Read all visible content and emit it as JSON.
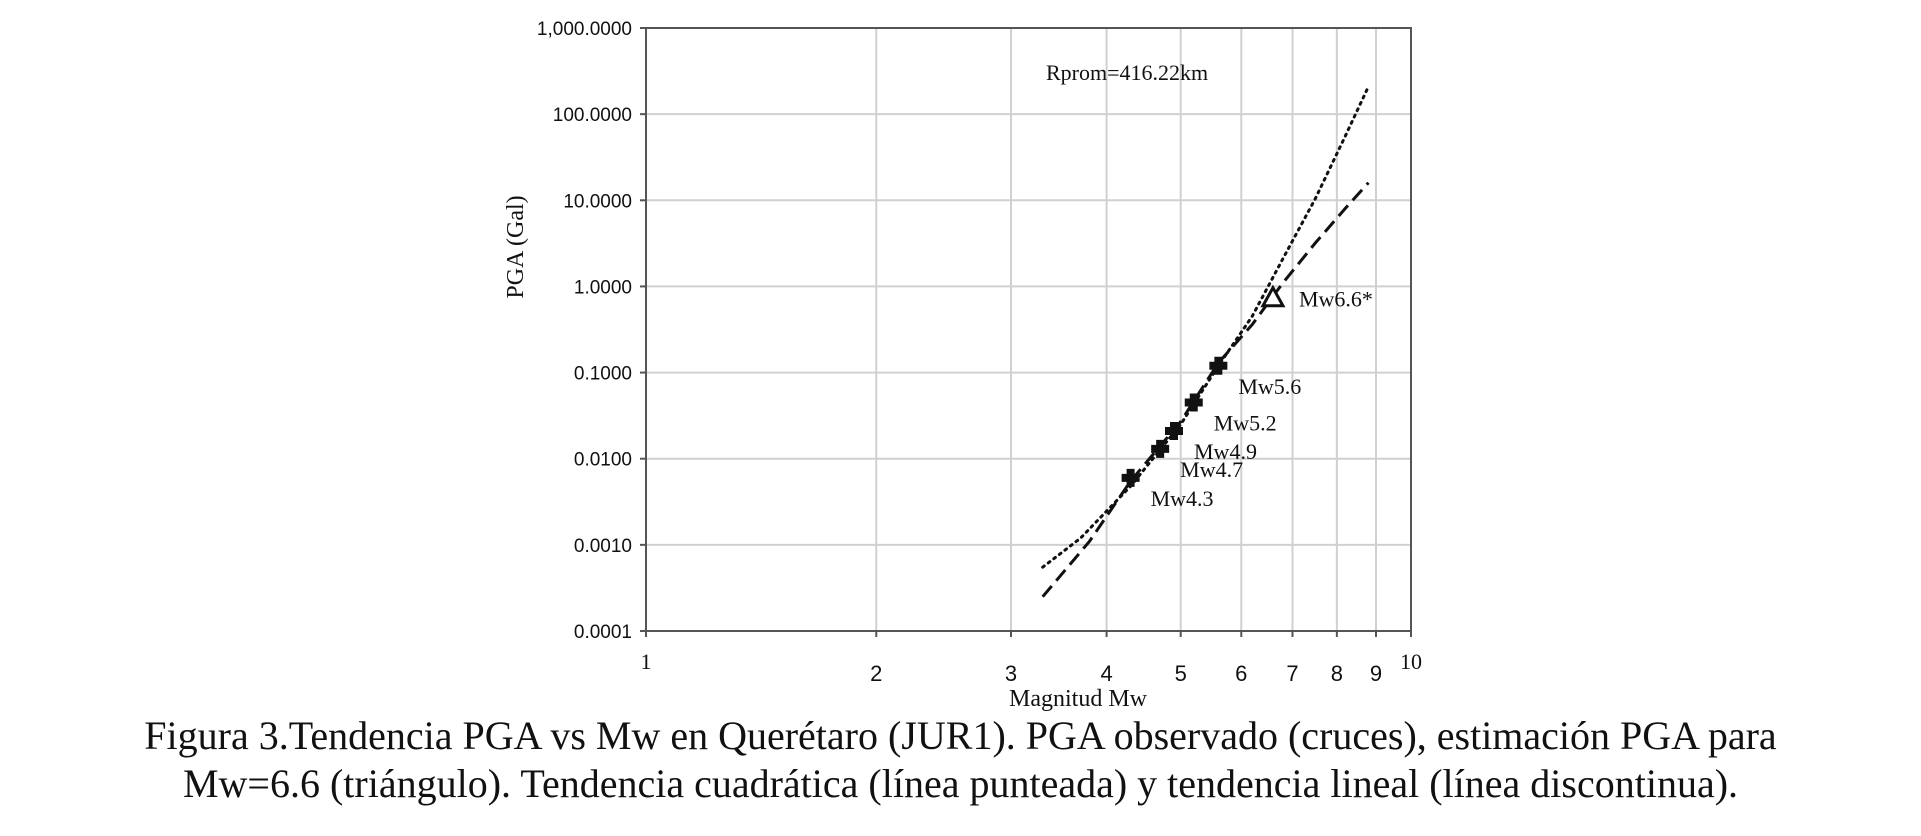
{
  "chart_data": {
    "type": "scatter",
    "xlabel": "Magnitud Mw",
    "ylabel": "PGA  (Gal)",
    "x_scale": "log",
    "y_scale": "log",
    "xlim": [
      1,
      10
    ],
    "ylim": [
      0.0001,
      1000
    ],
    "grid": true,
    "x_ticks": [
      {
        "value": 1,
        "label": "1"
      },
      {
        "value": 2,
        "label": "2"
      },
      {
        "value": 3,
        "label": "3"
      },
      {
        "value": 4,
        "label": "4"
      },
      {
        "value": 5,
        "label": "5"
      },
      {
        "value": 6,
        "label": "6"
      },
      {
        "value": 7,
        "label": "7"
      },
      {
        "value": 8,
        "label": "8"
      },
      {
        "value": 9,
        "label": "9"
      },
      {
        "value": 10,
        "label": "10"
      }
    ],
    "y_ticks": [
      {
        "value": 1000,
        "label": "1,000.0000"
      },
      {
        "value": 100,
        "label": "100.0000"
      },
      {
        "value": 10,
        "label": "10.0000"
      },
      {
        "value": 1,
        "label": "1.0000"
      },
      {
        "value": 0.1,
        "label": "0.1000"
      },
      {
        "value": 0.01,
        "label": "0.0100"
      },
      {
        "value": 0.001,
        "label": "0.0010"
      },
      {
        "value": 0.0001,
        "label": "0.0001"
      }
    ],
    "annotation": "Rprom=416.22km",
    "observed": [
      {
        "x": 4.3,
        "y": 0.006,
        "label": "Mw4.3"
      },
      {
        "x": 4.7,
        "y": 0.013,
        "label": "Mw4.7"
      },
      {
        "x": 4.9,
        "y": 0.021,
        "label": "Mw4.9"
      },
      {
        "x": 5.2,
        "y": 0.045,
        "label": "Mw5.2"
      },
      {
        "x": 5.6,
        "y": 0.12,
        "label": "Mw5.6"
      }
    ],
    "estimated": [
      {
        "x": 6.6,
        "y": 0.72,
        "label": "Mw6.6*"
      }
    ],
    "series": [
      {
        "style": "dotted",
        "x": [
          3.3,
          3.7,
          4.3,
          5.0,
          5.6,
          6.2,
          6.8,
          7.5,
          8.2,
          8.8
        ],
        "y": [
          0.00055,
          0.0012,
          0.0048,
          0.025,
          0.12,
          0.45,
          2.1,
          10.5,
          55,
          210
        ]
      },
      {
        "style": "dashed",
        "x": [
          3.3,
          3.8,
          4.3,
          5.0,
          5.6,
          6.2,
          6.8,
          7.5,
          8.2,
          8.8
        ],
        "y": [
          0.00025,
          0.0011,
          0.0055,
          0.027,
          0.13,
          0.36,
          1.1,
          3.2,
          8.0,
          16
        ]
      }
    ]
  },
  "caption": {
    "line1": "Figura 3.Tendencia PGA vs Mw en Querétaro (JUR1). PGA observado (cruces), estimación PGA para",
    "line2": "Mw=6.6 (triángulo). Tendencia cuadrática (línea punteada) y tendencia lineal (línea discontinua)."
  }
}
